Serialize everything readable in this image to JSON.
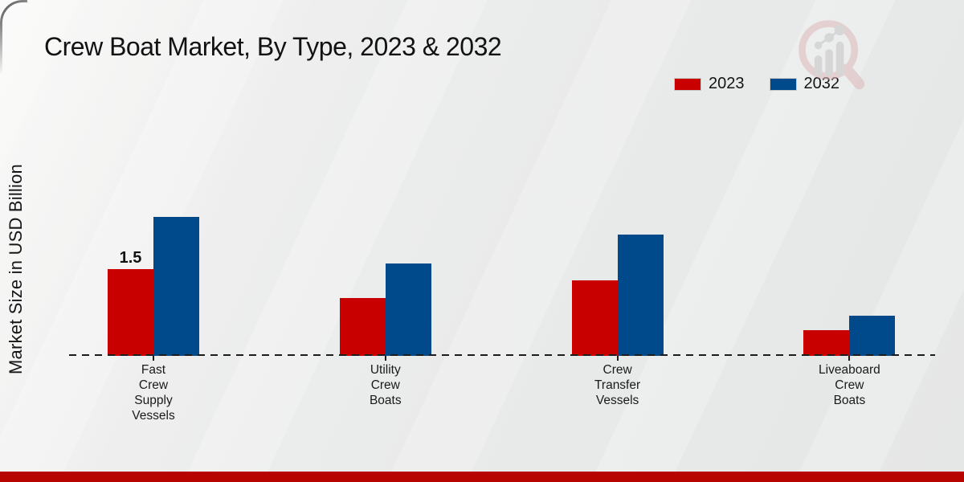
{
  "header": {
    "title": "Crew Boat Market, By Type, 2023 & 2032"
  },
  "axes": {
    "ylabel": "Market Size in USD Billion"
  },
  "legend": {
    "items": [
      {
        "label": "2023",
        "color": "#c80000"
      },
      {
        "label": "2032",
        "color": "#00498b"
      }
    ]
  },
  "chart_data": {
    "type": "bar",
    "title": "Crew Boat Market, By Type, 2023 & 2032",
    "ylabel": "Market Size in USD Billion",
    "categories": [
      "Fast Crew Supply Vessels",
      "Utility Crew Boats",
      "Crew Transfer Vessels",
      "Liveaboard Crew Boats"
    ],
    "category_label_lines": [
      [
        "Fast",
        "Crew",
        "Supply",
        "Vessels"
      ],
      [
        "Utility",
        "Crew",
        "Boats"
      ],
      [
        "Crew",
        "Transfer",
        "Vessels"
      ],
      [
        "Liveaboard",
        "Crew",
        "Boats"
      ]
    ],
    "series": [
      {
        "name": "2023",
        "color": "#c80000",
        "values": [
          1.5,
          1.0,
          1.3,
          0.45
        ]
      },
      {
        "name": "2032",
        "color": "#00498b",
        "values": [
          2.4,
          1.6,
          2.1,
          0.7
        ]
      }
    ],
    "data_labels": [
      {
        "series": "2023",
        "category_index": 0,
        "text": "1.5"
      }
    ],
    "ylim": [
      0,
      2.6
    ],
    "y_axis_ticks_visible": false,
    "baseline_style": "dashed",
    "grid": false,
    "legend_position": "top-right"
  },
  "watermark": {
    "icon": "magnifier-growth-logo"
  },
  "footer": {
    "color": "#b80400"
  }
}
